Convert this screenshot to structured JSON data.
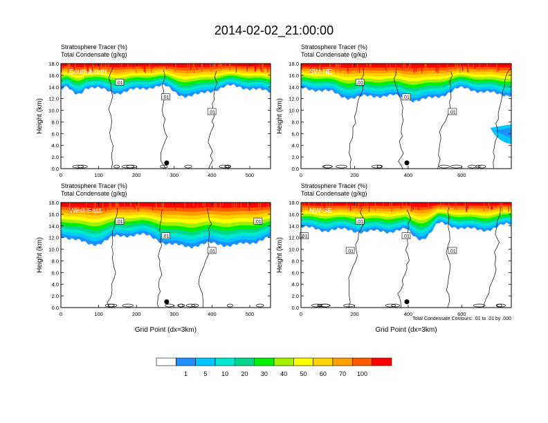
{
  "chart_data": {
    "type": "heatmap",
    "title": "2014-02-02_21:00:00",
    "panels": [
      {
        "label": "South-North",
        "subtitle_1": "Stratosphere Tracer   (%)",
        "subtitle_2": "Total Condensate   (g/kg)",
        "ylabel": "Height (km)",
        "xlabel": "",
        "xlim": [
          0,
          555
        ],
        "ylim": [
          0,
          18
        ],
        "xticks": [
          "0",
          "100",
          "200",
          "300",
          "400",
          "500"
        ],
        "yticks": [
          "0.0",
          "2.0",
          "4.0",
          "6.0",
          "8.0",
          "10.0",
          "12.0",
          "14.0",
          "16.0",
          "18.0"
        ],
        "marker_x": 280,
        "contour_labels": [
          ".01",
          ".01",
          ".01"
        ]
      },
      {
        "label": "SW-NE",
        "subtitle_1": "Stratosphere Tracer   (%)",
        "subtitle_2": "Total Condensate   (g/kg)",
        "ylabel": "Height (km)",
        "xlabel": "",
        "xlim": [
          0,
          785
        ],
        "ylim": [
          0,
          18
        ],
        "xticks": [
          "0",
          "200",
          "400",
          "600"
        ],
        "yticks": [
          "0.0",
          "2.0",
          "4.0",
          "6.0",
          "8.0",
          "10.0",
          "12.0",
          "14.0",
          "16.0",
          "18.0"
        ],
        "marker_x": 395,
        "contour_labels": [
          ".01",
          ".01",
          ".01"
        ]
      },
      {
        "label": "West-East",
        "subtitle_1": "Stratosphere Tracer   (%)",
        "subtitle_2": "Total Condensate   (g/kg)",
        "ylabel": "Height (km)",
        "xlabel": "Grid Point (dx=3km)",
        "xlim": [
          0,
          555
        ],
        "ylim": [
          0,
          18
        ],
        "xticks": [
          "0",
          "100",
          "200",
          "300",
          "400",
          "500"
        ],
        "yticks": [
          "0.0",
          "2.0",
          "4.0",
          "6.0",
          "8.0",
          "10.0",
          "12.0",
          "14.0",
          "16.0",
          "18.0"
        ],
        "marker_x": 280,
        "contour_labels": [
          ".01",
          ".01",
          ".01",
          ".01",
          ".01",
          ".01"
        ]
      },
      {
        "label": "NW-SE",
        "subtitle_1": "Stratosphere Tracer   (%)",
        "subtitle_2": "Total Condensate   (g/kg)",
        "ylabel": "Height (km)",
        "xlabel": "Grid Point (dx=3km)",
        "xlim": [
          0,
          785
        ],
        "ylim": [
          0,
          18
        ],
        "xticks": [
          "0",
          "200",
          "400",
          "600"
        ],
        "yticks": [
          "0.0",
          "2.0",
          "4.0",
          "6.0",
          "8.0",
          "10.0",
          "12.0",
          "14.0",
          "16.0",
          "18.0"
        ],
        "marker_x": 395,
        "contour_labels": [
          ".01",
          ".01",
          ".01"
        ],
        "footnote": "Total Condensate Contours: .01 to .01 by .000"
      }
    ],
    "colorbar": {
      "colors": [
        "#ffffff",
        "#1e90ff",
        "#00c8ff",
        "#00e8d0",
        "#00d88c",
        "#00f000",
        "#a0f000",
        "#ffff00",
        "#ffd200",
        "#ffa000",
        "#ff5a00",
        "#ff0000"
      ],
      "labels": [
        "1",
        "5",
        "10",
        "20",
        "30",
        "40",
        "50",
        "60",
        "70",
        "100"
      ]
    }
  }
}
